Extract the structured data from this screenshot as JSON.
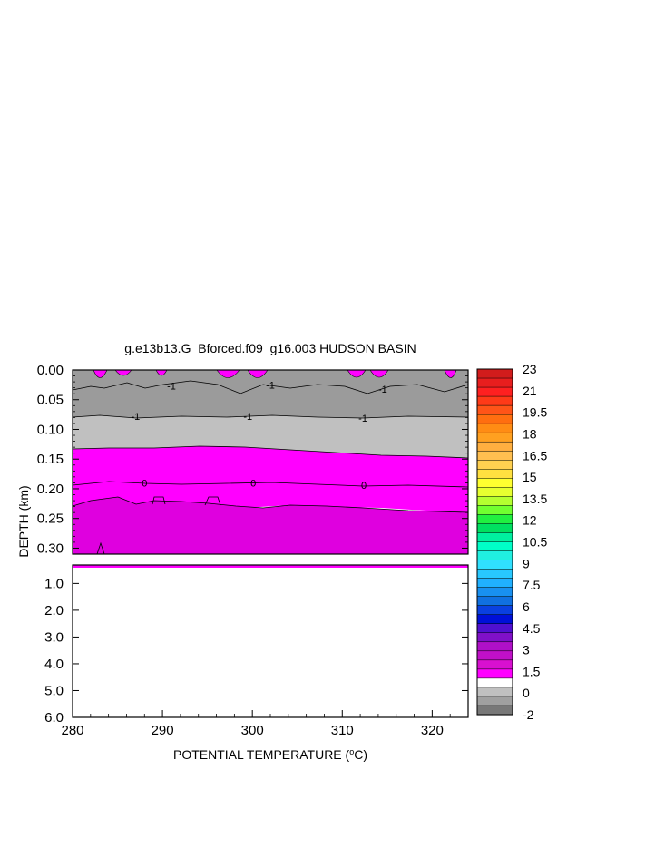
{
  "chart_data": {
    "type": "contour",
    "title": "g.e13b13.G_Bforced.f09_g16.003 HUDSON BASIN",
    "xlabel": "POTENTIAL TEMPERATURE (",
    "xlabel_unit_sup": "o",
    "xlabel_unit": "C)",
    "ylabel": "DEPTH (km)",
    "xlim": [
      280,
      324
    ],
    "x_ticks": [
      "280",
      "290",
      "300",
      "310",
      "320"
    ],
    "upper_panel": {
      "ylim": [
        0,
        0.31
      ],
      "y_ticks": [
        "0.00",
        "0.05",
        "0.10",
        "0.15",
        "0.20",
        "0.25",
        "0.30"
      ],
      "contour_labels": [
        {
          "text": "-1",
          "x": 291.0,
          "y": 0.027
        },
        {
          "text": "-1",
          "x": 302.0,
          "y": 0.025
        },
        {
          "text": "-1",
          "x": 314.5,
          "y": 0.032
        },
        {
          "text": "-1",
          "x": 287.0,
          "y": 0.078
        },
        {
          "text": "-1",
          "x": 299.5,
          "y": 0.078
        },
        {
          "text": "-1",
          "x": 312.3,
          "y": 0.081
        },
        {
          "text": "0",
          "x": 288.0,
          "y": 0.19
        },
        {
          "text": "0",
          "x": 300.1,
          "y": 0.19
        },
        {
          "text": "0",
          "x": 312.4,
          "y": 0.194
        }
      ]
    },
    "lower_panel": {
      "ylim": [
        0.31,
        6.0
      ],
      "y_ticks": [
        "1.0",
        "2.0",
        "3.0",
        "4.0",
        "5.0",
        "6.0"
      ]
    },
    "colorbar": {
      "labels": [
        "23",
        "21",
        "19.5",
        "18",
        "16.5",
        "15",
        "13.5",
        "12",
        "10.5",
        "9",
        "7.5",
        "6",
        "4.5",
        "3",
        "1.5",
        "0",
        "-2"
      ],
      "colors": [
        "#d21c1c",
        "#e81e1e",
        "#ff2020",
        "#ff3a18",
        "#ff5418",
        "#ff6e10",
        "#ff8c14",
        "#ffa020",
        "#ffaf40",
        "#ffbf50",
        "#ffd050",
        "#ffe040",
        "#ffff30",
        "#e6ff30",
        "#b4ff30",
        "#70ff30",
        "#20f040",
        "#00e060",
        "#00f0a0",
        "#00ffc8",
        "#20f0e0",
        "#30e0ff",
        "#28c8ff",
        "#20b0ff",
        "#1890f0",
        "#1070e0",
        "#0a40e0",
        "#0010d8",
        "#5010d0",
        "#8010c8",
        "#b010c8",
        "#c010c8",
        "#d810d0",
        "#ff00ff",
        "#ffffff",
        "#c0c0c0",
        "#a0a0a0",
        "#787878"
      ]
    },
    "band_colors": {
      "dark_grey": "#9b9b9b",
      "light_grey": "#c0c0c0",
      "bright_magenta": "#ff00ff",
      "deep_magenta": "#df00df"
    }
  }
}
